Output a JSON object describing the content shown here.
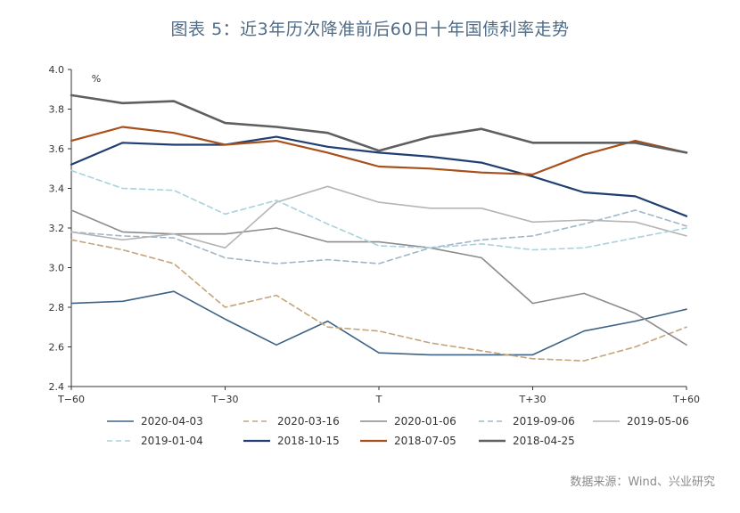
{
  "header": {
    "title": "图表 5：近3年历次降准前后60日十年国债利率走势"
  },
  "footer": {
    "source": "数据来源：Wind、兴业研究"
  },
  "chart_data": {
    "type": "line",
    "title": "图表 5：近3年历次降准前后60日十年国债利率走势",
    "xlabel": "",
    "ylabel": "%",
    "ylim": [
      2.4,
      4.0
    ],
    "xlim": [
      -60,
      60
    ],
    "yticks": [
      "2.4",
      "2.6",
      "2.8",
      "3.0",
      "3.2",
      "3.4",
      "3.6",
      "3.8",
      "4.0"
    ],
    "xticks": [
      {
        "value": -60,
        "label": "T−60"
      },
      {
        "value": -30,
        "label": "T−30"
      },
      {
        "value": 0,
        "label": "T"
      },
      {
        "value": 30,
        "label": "T+30"
      },
      {
        "value": 60,
        "label": "T+60"
      }
    ],
    "grid": false,
    "legend_position": "bottom",
    "x": [
      -60,
      -50,
      -40,
      -30,
      -20,
      -10,
      0,
      10,
      20,
      30,
      40,
      50,
      60
    ],
    "series": [
      {
        "name": "2020-04-03",
        "color": "#3e6285",
        "dash": "solid",
        "width": 1.6,
        "values": [
          2.82,
          2.83,
          2.88,
          2.74,
          2.61,
          2.73,
          2.57,
          2.56,
          2.56,
          2.56,
          2.68,
          2.73,
          2.79
        ]
      },
      {
        "name": "2020-03-16",
        "color": "#c4a57a",
        "dash": "dashed",
        "width": 1.6,
        "values": [
          3.14,
          3.09,
          3.02,
          2.8,
          2.86,
          2.7,
          2.68,
          2.62,
          2.58,
          2.54,
          2.53,
          2.6,
          2.7
        ]
      },
      {
        "name": "2020-01-06",
        "color": "#8c8c8c",
        "dash": "solid",
        "width": 1.6,
        "values": [
          3.29,
          3.18,
          3.17,
          3.17,
          3.2,
          3.13,
          3.13,
          3.1,
          3.05,
          2.82,
          2.87,
          2.77,
          2.61
        ]
      },
      {
        "name": "2019-09-06",
        "color": "#9fb8c8",
        "dash": "dashed",
        "width": 1.6,
        "values": [
          3.18,
          3.16,
          3.15,
          3.05,
          3.02,
          3.04,
          3.02,
          3.1,
          3.14,
          3.16,
          3.22,
          3.29,
          3.21
        ]
      },
      {
        "name": "2019-05-06",
        "color": "#b5b5b5",
        "dash": "solid",
        "width": 1.6,
        "values": [
          3.18,
          3.14,
          3.17,
          3.1,
          3.33,
          3.41,
          3.33,
          3.3,
          3.3,
          3.23,
          3.24,
          3.23,
          3.16
        ]
      },
      {
        "name": "2019-01-04",
        "color": "#a9d2dc",
        "dash": "dashed",
        "width": 1.6,
        "values": [
          3.49,
          3.4,
          3.39,
          3.27,
          3.34,
          3.22,
          3.11,
          3.1,
          3.12,
          3.09,
          3.1,
          3.15,
          3.2
        ]
      },
      {
        "name": "2018-10-15",
        "color": "#1f3f73",
        "dash": "solid",
        "width": 2.2,
        "values": [
          3.52,
          3.63,
          3.62,
          3.62,
          3.66,
          3.61,
          3.58,
          3.56,
          3.53,
          3.46,
          3.38,
          3.36,
          3.26
        ]
      },
      {
        "name": "2018-07-05",
        "color": "#a8501c",
        "dash": "solid",
        "width": 2.2,
        "values": [
          3.64,
          3.71,
          3.68,
          3.62,
          3.64,
          3.58,
          3.51,
          3.5,
          3.48,
          3.47,
          3.57,
          3.64,
          3.58
        ]
      },
      {
        "name": "2018-04-25",
        "color": "#5f5f5f",
        "dash": "solid",
        "width": 2.6,
        "values": [
          3.87,
          3.83,
          3.84,
          3.73,
          3.71,
          3.68,
          3.59,
          3.66,
          3.7,
          3.63,
          3.63,
          3.63,
          3.58
        ]
      }
    ]
  }
}
